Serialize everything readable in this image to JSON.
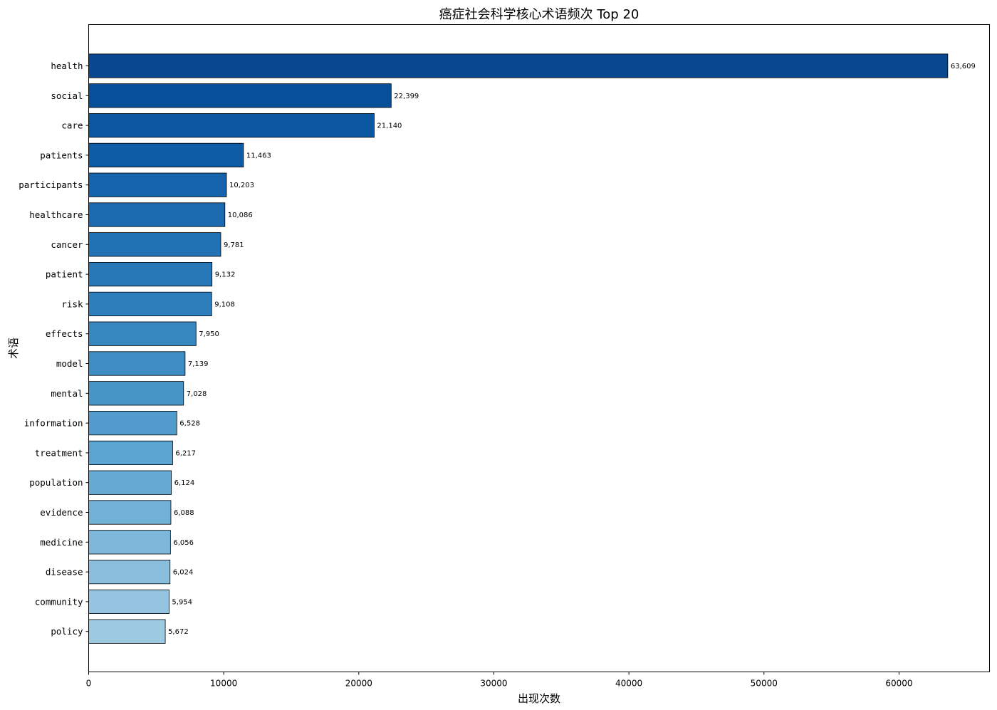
{
  "chart_data": {
    "type": "bar",
    "orientation": "horizontal",
    "title": "癌症社会科学核心术语频次 Top 20",
    "xlabel": "出现次数",
    "ylabel": "术语",
    "xlim": [
      0,
      66700
    ],
    "xticks": [
      0,
      10000,
      20000,
      30000,
      40000,
      50000,
      60000
    ],
    "xtick_labels": [
      "0",
      "10000",
      "20000",
      "30000",
      "40000",
      "50000",
      "60000"
    ],
    "grid": false,
    "legend": "none",
    "colormap": "Blues (dark at top, light at bottom)",
    "categories": [
      "health",
      "social",
      "care",
      "patients",
      "participants",
      "healthcare",
      "cancer",
      "patient",
      "risk",
      "effects",
      "model",
      "mental",
      "information",
      "treatment",
      "population",
      "evidence",
      "medicine",
      "disease",
      "community",
      "policy"
    ],
    "values": [
      63609,
      22399,
      21140,
      11463,
      10203,
      10086,
      9781,
      9132,
      9108,
      7950,
      7139,
      7028,
      6528,
      6217,
      6124,
      6088,
      6056,
      6024,
      5954,
      5672
    ],
    "value_labels": [
      "63,609",
      "22,399",
      "21,140",
      "11,463",
      "10,203",
      "10,086",
      "9,781",
      "9,132",
      "9,108",
      "7,950",
      "7,139",
      "7,028",
      "6,528",
      "6,217",
      "6,124",
      "6,088",
      "6,056",
      "6,024",
      "5,954",
      "5,672"
    ],
    "colors": [
      "#08488e",
      "#084f99",
      "#0b56a0",
      "#0f5ca6",
      "#1563aa",
      "#1b69af",
      "#2171b5",
      "#2878b8",
      "#2f7ebc",
      "#3686c0",
      "#3d8dc4",
      "#4794c7",
      "#519ccc",
      "#5ba3d0",
      "#66aad4",
      "#71b1d7",
      "#7db8da",
      "#89bedc",
      "#94c4df",
      "#9dc9e1"
    ]
  }
}
